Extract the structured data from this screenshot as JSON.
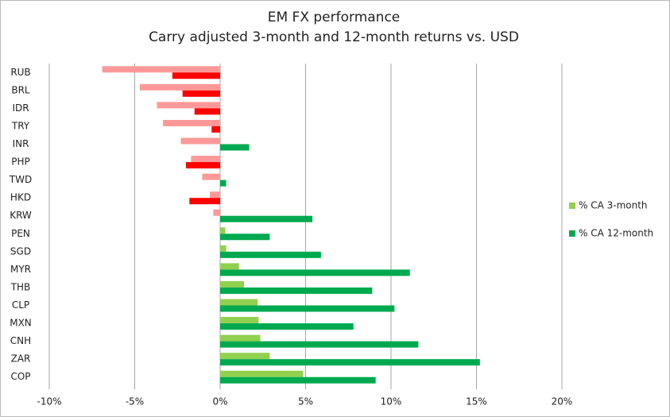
{
  "chart_data": {
    "type": "hbar",
    "title": [
      "EM FX performance",
      "Carry adjusted 3-month and 12-month returns vs. USD"
    ],
    "categories": [
      "RUB",
      "BRL",
      "IDR",
      "TRY",
      "INR",
      "PHP",
      "TWD",
      "HKD",
      "KRW",
      "PEN",
      "SGD",
      "MYR",
      "THB",
      "CLP",
      "MXN",
      "CNH",
      "ZAR",
      "COP"
    ],
    "series": [
      {
        "name": "% CA 3-month",
        "color": "#92d050",
        "negative_color": "#ff9999",
        "values": [
          -6.9,
          -4.7,
          -3.7,
          -3.35,
          -2.3,
          -1.7,
          -1.05,
          -0.6,
          -0.4,
          0.3,
          0.35,
          1.1,
          1.4,
          2.2,
          2.25,
          2.35,
          2.9,
          4.85
        ]
      },
      {
        "name": "% CA 12-month",
        "color": "#00a94f",
        "negative_color": "#ff0000",
        "values": [
          -2.8,
          -2.2,
          -1.5,
          -0.5,
          1.7,
          -2.0,
          0.35,
          -1.8,
          5.4,
          2.9,
          5.9,
          11.1,
          8.9,
          10.2,
          7.8,
          11.6,
          15.2,
          9.1
        ]
      }
    ],
    "xlim": [
      -10,
      20
    ],
    "xticks": [
      {
        "value": -10,
        "label": "-10%"
      },
      {
        "value": -5,
        "label": "-5%"
      },
      {
        "value": 0,
        "label": "0%"
      },
      {
        "value": 5,
        "label": "5%"
      },
      {
        "value": 10,
        "label": "10%"
      },
      {
        "value": 15,
        "label": "15%"
      },
      {
        "value": 20,
        "label": "20%"
      }
    ],
    "grid": true,
    "legend": "right"
  }
}
